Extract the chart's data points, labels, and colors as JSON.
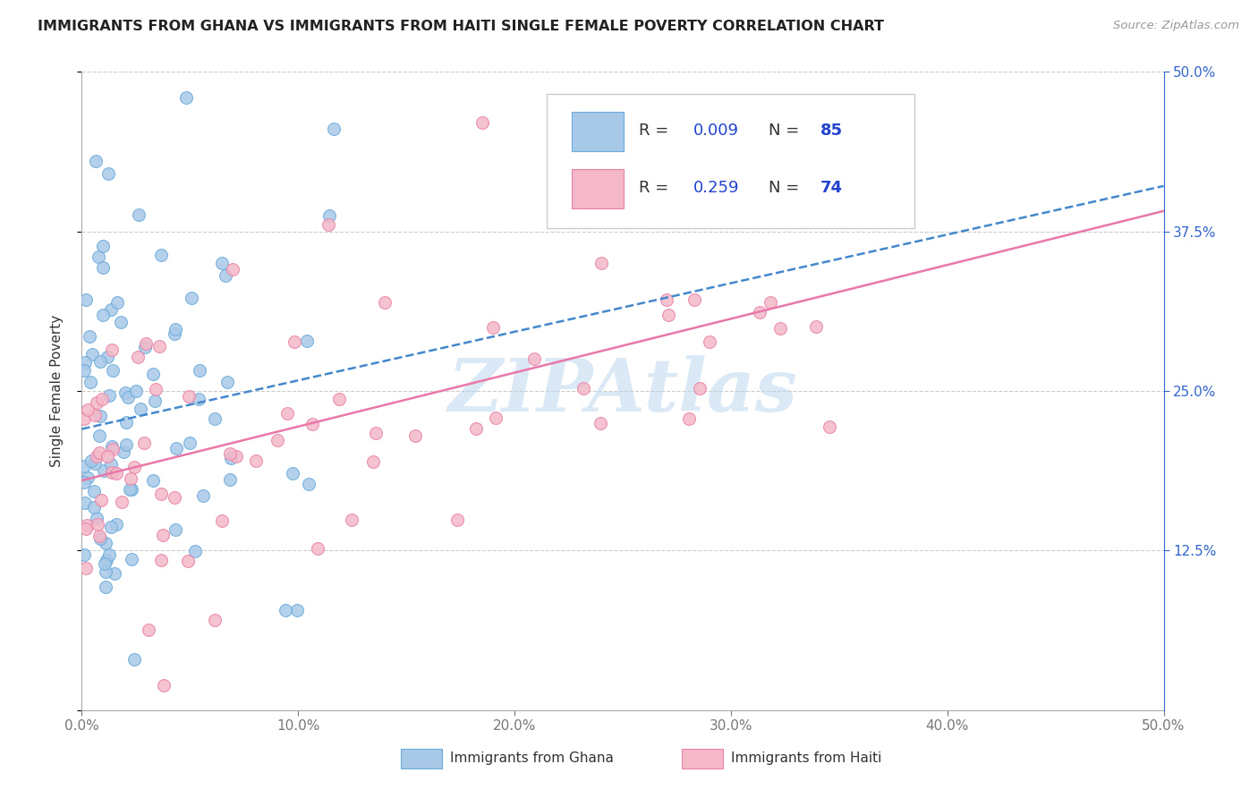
{
  "title": "IMMIGRANTS FROM GHANA VS IMMIGRANTS FROM HAITI SINGLE FEMALE POVERTY CORRELATION CHART",
  "source": "Source: ZipAtlas.com",
  "ylabel": "Single Female Poverty",
  "xlim": [
    0,
    0.5
  ],
  "ylim": [
    0,
    0.5
  ],
  "ghana_color": "#a8c8e8",
  "ghana_edge_color": "#6aabda",
  "haiti_color": "#f4b8c8",
  "haiti_edge_color": "#e882a8",
  "ghana_line_color": "#4488cc",
  "haiti_line_color": "#e878a8",
  "ghana_R": 0.009,
  "ghana_N": 85,
  "haiti_R": 0.259,
  "haiti_N": 74,
  "legend_color": "#2244cc",
  "watermark": "ZIPAtlas",
  "watermark_color": "#b8d4ee",
  "background_color": "#ffffff",
  "grid_color": "#cccccc",
  "right_axis_color": "#3366cc",
  "x_ticks": [
    0.0,
    0.1,
    0.2,
    0.3,
    0.4,
    0.5
  ],
  "y_ticks": [
    0.0,
    0.125,
    0.25,
    0.375,
    0.5
  ],
  "y_right_labels": [
    "50.0%",
    "37.5%",
    "25.0%",
    "12.5%"
  ]
}
